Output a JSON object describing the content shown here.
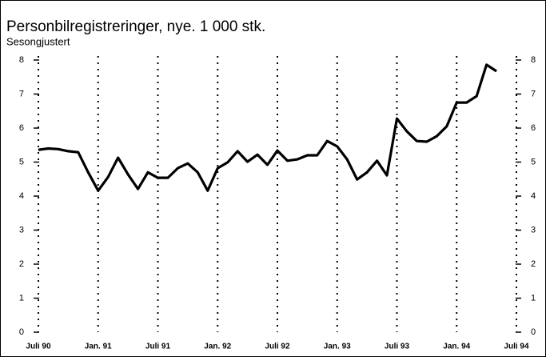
{
  "chart_data": {
    "type": "line",
    "title": "Personbilregistreringer, nye. 1 000 stk.",
    "subtitle": "Sesongjustert",
    "categories": [
      "Juli 90",
      null,
      null,
      null,
      null,
      null,
      "Jan. 91",
      null,
      null,
      null,
      null,
      null,
      "Juli 91",
      null,
      null,
      null,
      null,
      null,
      "Jan. 92",
      null,
      null,
      null,
      null,
      null,
      "Juli 92",
      null,
      null,
      null,
      null,
      null,
      "Jan. 93",
      null,
      null,
      null,
      null,
      null,
      "Juli 93",
      null,
      null,
      null,
      null,
      null,
      "Jan. 94",
      null,
      null,
      null,
      null,
      null,
      "Juli 94"
    ],
    "series": [
      {
        "color": "#000000",
        "values": [
          5.36,
          5.4,
          5.38,
          5.32,
          5.29,
          4.7,
          4.16,
          4.56,
          5.13,
          4.64,
          4.21,
          4.7,
          4.54,
          4.54,
          4.82,
          4.96,
          4.7,
          4.16,
          4.82,
          4.99,
          5.32,
          5.01,
          5.22,
          4.92,
          5.34,
          5.04,
          5.08,
          5.2,
          5.2,
          5.62,
          5.46,
          5.08,
          4.49,
          4.7,
          5.04,
          4.61,
          6.28,
          5.9,
          5.62,
          5.6,
          5.76,
          6.05,
          6.75,
          6.75,
          6.94,
          7.86,
          7.67,
          null,
          null
        ]
      }
    ],
    "ylim": [
      0,
      8
    ],
    "yticks": [
      0,
      1,
      2,
      3,
      4,
      5,
      6,
      7,
      8
    ]
  }
}
